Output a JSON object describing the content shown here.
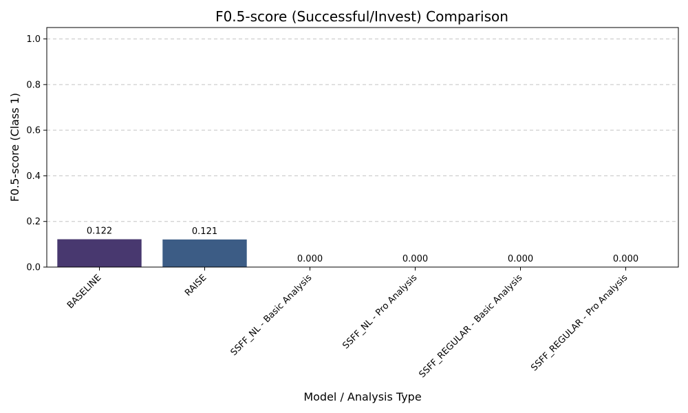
{
  "chart_data": {
    "type": "bar",
    "title": "F0.5-score (Successful/Invest) Comparison",
    "xlabel": "Model / Analysis Type",
    "ylabel": "F0.5-score (Class 1)",
    "ylim": [
      0,
      1.05
    ],
    "yticks": [
      "0.0",
      "0.2",
      "0.4",
      "0.6",
      "0.8",
      "1.0"
    ],
    "grid": "horizontal dashed",
    "categories": [
      "BASELINE",
      "RAISE",
      "SSFF_NL - Basic Analysis",
      "SSFF_NL - Pro Analysis",
      "SSFF_REGULAR - Basic Analysis",
      "SSFF_REGULAR - Pro Analysis"
    ],
    "values": [
      0.122,
      0.121,
      0.0,
      0.0,
      0.0,
      0.0
    ],
    "value_labels": [
      "0.122",
      "0.121",
      "0.000",
      "0.000",
      "0.000",
      "0.000"
    ],
    "colors": [
      "#48386f",
      "#3c5c85",
      "#2e7b8c",
      "#23998a",
      "#3bb677",
      "#7bce55"
    ]
  }
}
